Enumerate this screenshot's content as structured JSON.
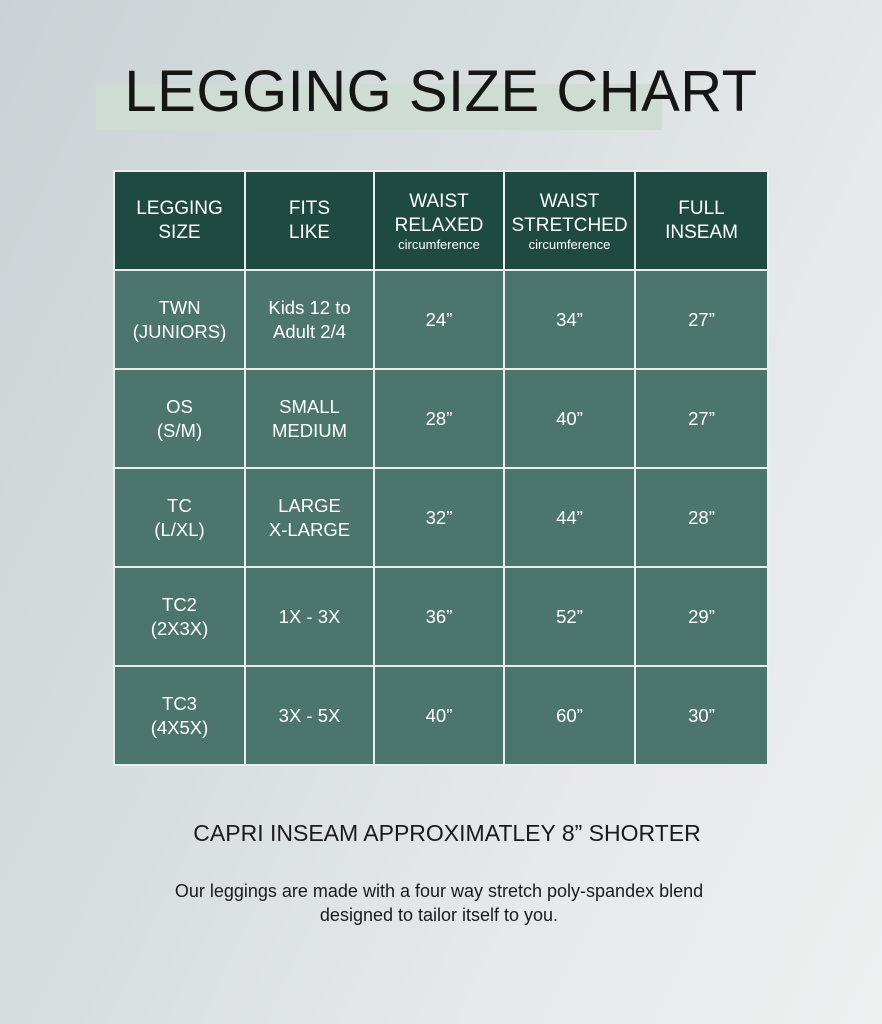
{
  "title": "LEGGING SIZE CHART",
  "table": {
    "headers": [
      {
        "line1": "LEGGING",
        "line2": "SIZE",
        "sub": ""
      },
      {
        "line1": "FITS",
        "line2": "LIKE",
        "sub": ""
      },
      {
        "line1": "WAIST",
        "line2": "RELAXED",
        "sub": "circumference"
      },
      {
        "line1": "WAIST",
        "line2": "STRETCHED",
        "sub": "circumference"
      },
      {
        "line1": "FULL",
        "line2": "INSEAM",
        "sub": ""
      }
    ],
    "rows": [
      {
        "size1": "TWN",
        "size2": "(JUNIORS)",
        "fit1": "Kids 12 to",
        "fit2": "Adult 2/4",
        "relaxed": "24”",
        "stretched": "34”",
        "inseam": "27”"
      },
      {
        "size1": "OS",
        "size2": "(S/M)",
        "fit1": "SMALL",
        "fit2": "MEDIUM",
        "relaxed": "28”",
        "stretched": "40”",
        "inseam": "27”"
      },
      {
        "size1": "TC",
        "size2": "(L/XL)",
        "fit1": "LARGE",
        "fit2": "X-LARGE",
        "relaxed": "32”",
        "stretched": "44”",
        "inseam": "28”"
      },
      {
        "size1": "TC2",
        "size2": "(2X3X)",
        "fit1": "1X - 3X",
        "fit2": "",
        "relaxed": "36”",
        "stretched": "52”",
        "inseam": "29”"
      },
      {
        "size1": "TC3",
        "size2": "(4X5X)",
        "fit1": "3X - 5X",
        "fit2": "",
        "relaxed": "40”",
        "stretched": "60”",
        "inseam": "30”"
      }
    ]
  },
  "capri_note": "CAPRI INSEAM APPROXIMATLEY 8” SHORTER",
  "description_line1": "Our leggings are made with a four way stretch poly-spandex blend",
  "description_line2": "designed to tailor itself to you.",
  "colors": {
    "header": "#1f4a42",
    "cell": "#4b756d",
    "highlight": "#cfdcd3"
  }
}
